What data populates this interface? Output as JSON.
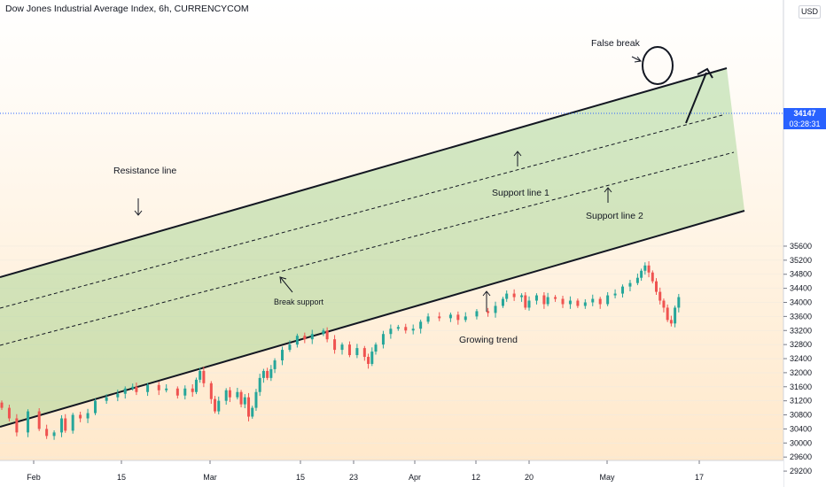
{
  "title": "Dow Jones Industrial Average Index, 6h, CURRENCYCOM",
  "currency": "USD",
  "last_price": "34147",
  "countdown": "03:28:31",
  "colors": {
    "up": "#26a69a",
    "down": "#ef5350",
    "channel_fill": "#9cd18a",
    "badge": "#2962ff"
  },
  "chart_data": {
    "type": "candlestick",
    "y_ticks": [
      "29200",
      "29600",
      "30000",
      "30400",
      "30800",
      "31200",
      "31600",
      "32000",
      "32400",
      "32800",
      "33200",
      "33600",
      "34000",
      "34400",
      "34800",
      "35200"
    ],
    "y_top_label": "35600",
    "x_ticks": [
      "Feb",
      "15",
      "Mar",
      "15",
      "23",
      "Apr",
      "12",
      "20",
      "May",
      "17"
    ],
    "ylim": [
      29000,
      35850
    ],
    "current_price": 34147,
    "series": [
      {
        "t": 0,
        "c": 31000
      },
      {
        "t": 2,
        "c": 30700
      },
      {
        "t": 4,
        "c": 30300
      },
      {
        "t": 7,
        "c": 30900
      },
      {
        "t": 10,
        "c": 30400
      },
      {
        "t": 12,
        "c": 30200
      },
      {
        "t": 14,
        "c": 30300
      },
      {
        "t": 16,
        "c": 30700
      },
      {
        "t": 17,
        "c": 30350
      },
      {
        "t": 19,
        "c": 30800
      },
      {
        "t": 21,
        "c": 30700
      },
      {
        "t": 23,
        "c": 30850
      },
      {
        "t": 25,
        "c": 31200
      },
      {
        "t": 28,
        "c": 31300
      },
      {
        "t": 31,
        "c": 31400
      },
      {
        "t": 33,
        "c": 31550
      },
      {
        "t": 35,
        "c": 31600
      },
      {
        "t": 36,
        "c": 31450
      },
      {
        "t": 39,
        "c": 31650
      },
      {
        "t": 42,
        "c": 31500
      },
      {
        "t": 44,
        "c": 31550
      },
      {
        "t": 47,
        "c": 31350
      },
      {
        "t": 49,
        "c": 31550
      },
      {
        "t": 51,
        "c": 31450
      },
      {
        "t": 52,
        "c": 31800
      },
      {
        "t": 53,
        "c": 32050
      },
      {
        "t": 54,
        "c": 31700
      },
      {
        "t": 56,
        "c": 31250
      },
      {
        "t": 57,
        "c": 30900
      },
      {
        "t": 58,
        "c": 31200
      },
      {
        "t": 60,
        "c": 31500
      },
      {
        "t": 61,
        "c": 31300
      },
      {
        "t": 63,
        "c": 31450
      },
      {
        "t": 64,
        "c": 31100
      },
      {
        "t": 65,
        "c": 31300
      },
      {
        "t": 66,
        "c": 30750
      },
      {
        "t": 67,
        "c": 31000
      },
      {
        "t": 68,
        "c": 31450
      },
      {
        "t": 69,
        "c": 31850
      },
      {
        "t": 70,
        "c": 32050
      },
      {
        "t": 71,
        "c": 31850
      },
      {
        "t": 72,
        "c": 32100
      },
      {
        "t": 73,
        "c": 32350
      },
      {
        "t": 75,
        "c": 32650
      },
      {
        "t": 77,
        "c": 32800
      },
      {
        "t": 79,
        "c": 33050
      },
      {
        "t": 81,
        "c": 32950
      },
      {
        "t": 83,
        "c": 33100
      },
      {
        "t": 86,
        "c": 33200
      },
      {
        "t": 87,
        "c": 32950
      },
      {
        "t": 89,
        "c": 32650
      },
      {
        "t": 91,
        "c": 32800
      },
      {
        "t": 93,
        "c": 32500
      },
      {
        "t": 95,
        "c": 32700
      },
      {
        "t": 97,
        "c": 32450
      },
      {
        "t": 98,
        "c": 32250
      },
      {
        "t": 99,
        "c": 32600
      },
      {
        "t": 100,
        "c": 32800
      },
      {
        "t": 102,
        "c": 33100
      },
      {
        "t": 104,
        "c": 33250
      },
      {
        "t": 106,
        "c": 33300
      },
      {
        "t": 108,
        "c": 33200
      },
      {
        "t": 110,
        "c": 33250
      },
      {
        "t": 112,
        "c": 33450
      },
      {
        "t": 114,
        "c": 33600
      },
      {
        "t": 117,
        "c": 33550
      },
      {
        "t": 120,
        "c": 33650
      },
      {
        "t": 122,
        "c": 33500
      },
      {
        "t": 124,
        "c": 33600
      },
      {
        "t": 127,
        "c": 33750
      },
      {
        "t": 130,
        "c": 33700
      },
      {
        "t": 132,
        "c": 33900
      },
      {
        "t": 134,
        "c": 34100
      },
      {
        "t": 135,
        "c": 34250
      },
      {
        "t": 137,
        "c": 34150
      },
      {
        "t": 139,
        "c": 34200
      },
      {
        "t": 140,
        "c": 33850
      },
      {
        "t": 141,
        "c": 34050
      },
      {
        "t": 143,
        "c": 34200
      },
      {
        "t": 145,
        "c": 33950
      },
      {
        "t": 146,
        "c": 34150
      },
      {
        "t": 148,
        "c": 34100
      },
      {
        "t": 150,
        "c": 33950
      },
      {
        "t": 152,
        "c": 34050
      },
      {
        "t": 154,
        "c": 33900
      },
      {
        "t": 156,
        "c": 34000
      },
      {
        "t": 158,
        "c": 34100
      },
      {
        "t": 160,
        "c": 33950
      },
      {
        "t": 162,
        "c": 34200
      },
      {
        "t": 164,
        "c": 34250
      },
      {
        "t": 166,
        "c": 34450
      },
      {
        "t": 168,
        "c": 34550
      },
      {
        "t": 170,
        "c": 34700
      },
      {
        "t": 171,
        "c": 34900
      },
      {
        "t": 172,
        "c": 35050
      },
      {
        "t": 173,
        "c": 34850
      },
      {
        "t": 174,
        "c": 34600
      },
      {
        "t": 175,
        "c": 34300
      },
      {
        "t": 176,
        "c": 34050
      },
      {
        "t": 177,
        "c": 33850
      },
      {
        "t": 178,
        "c": 33500
      },
      {
        "t": 179,
        "c": 33400
      },
      {
        "t": 180,
        "c": 33850
      },
      {
        "t": 181,
        "c": 34150
      }
    ],
    "annotations": {
      "resistance": "Resistance line",
      "support1": "Support line 1",
      "support2": "Support line 2",
      "growing": "Growing trend",
      "false_break": "False break",
      "break_support": "Break support"
    }
  }
}
